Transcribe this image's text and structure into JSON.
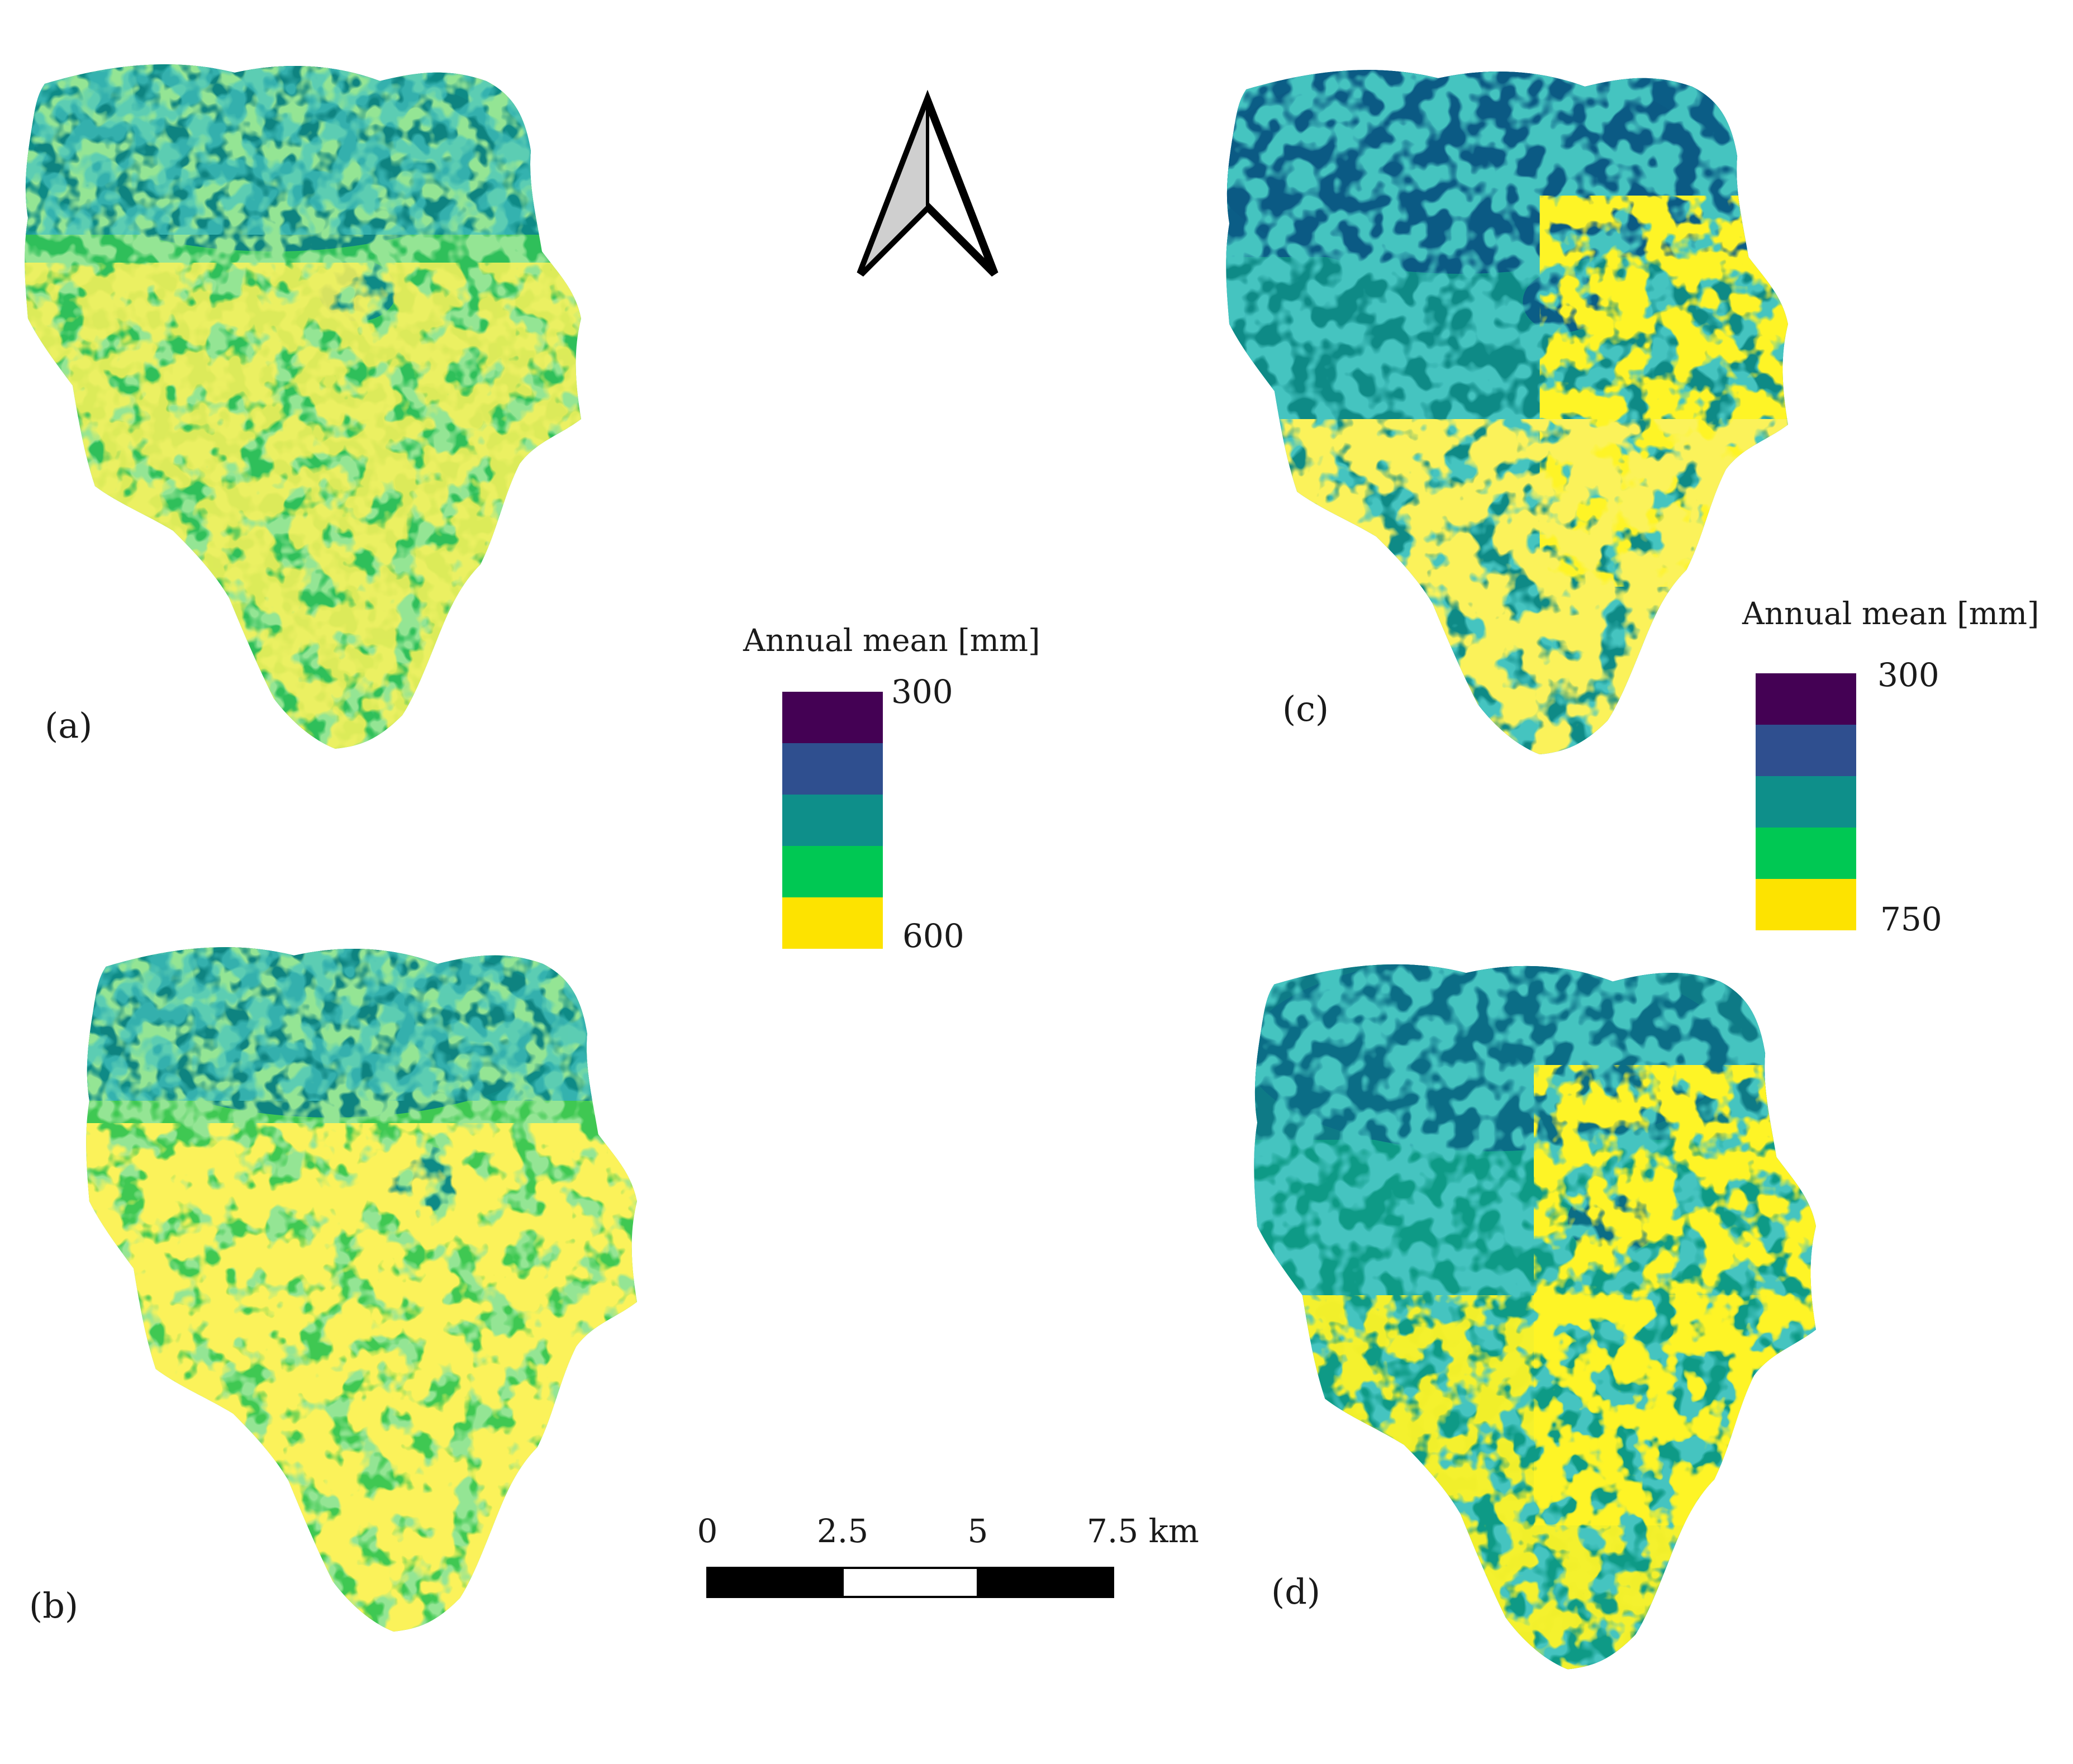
{
  "panels": [
    {
      "label": "(a)",
      "field": "mid"
    },
    {
      "label": "(b)",
      "field": "mid-bright"
    },
    {
      "label": "(c)",
      "field": "low"
    },
    {
      "label": "(d)",
      "field": "bright"
    }
  ],
  "legends": [
    {
      "title": "Annual mean [mm]",
      "min_label": "300",
      "max_label": "600",
      "classes": [
        "#440154",
        "#2f4f8f",
        "#0e8f8a",
        "#00c853",
        "#fde300"
      ]
    },
    {
      "title": "Annual mean [mm]",
      "min_label": "300",
      "max_label": "750",
      "classes": [
        "#440154",
        "#2f4f8f",
        "#0e8f8a",
        "#00c853",
        "#fde300"
      ]
    }
  ],
  "scale_bar": {
    "ticks": [
      "0",
      "2.5",
      "5",
      "7.5 km"
    ]
  },
  "north_arrow": {
    "icon": "north-arrow-icon"
  },
  "colors": {
    "deep": "#0b5d86",
    "teal": "#0e8a86",
    "green": "#2fbf5a",
    "lightgreen": "#5fce3e",
    "yellowgreen": "#b8dc2a",
    "yellow": "#f4e21a"
  }
}
